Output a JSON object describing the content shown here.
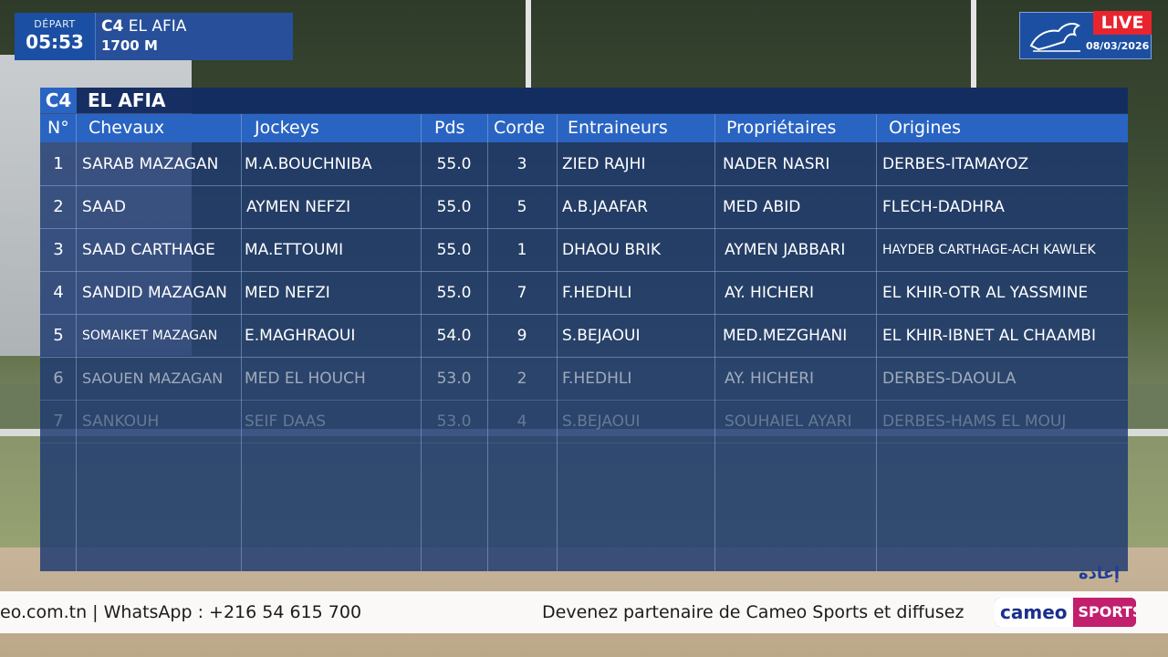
{
  "header": {
    "depart_label": "DÉPART",
    "depart_time": "05:53",
    "race_code": "C4",
    "race_name": "EL AFIA",
    "distance": "1700 M",
    "live": "LIVE",
    "date": "08/03/2026"
  },
  "table": {
    "code": "C4",
    "title": "EL AFIA",
    "columns": [
      "N°",
      "Chevaux",
      "Jockeys",
      "Pds",
      "Corde",
      "Entraineurs",
      "Propriétaires",
      "Origines"
    ],
    "rows": [
      {
        "num": "1",
        "horse": "SARAB MAZAGAN",
        "jockey": "M.A.BOUCHNIBA",
        "pds": "55.0",
        "corde": "3",
        "trainer": "ZIED RAJHI",
        "owner": "NADER NASRI",
        "origin": "DERBES-ITAMAYOZ"
      },
      {
        "num": "2",
        "horse": "SAAD",
        "jockey": "AYMEN NEFZI",
        "pds": "55.0",
        "corde": "5",
        "trainer": "A.B.JAAFAR",
        "owner": "MED ABID",
        "origin": "FLECH-DADHRA"
      },
      {
        "num": "3",
        "horse": "SAAD CARTHAGE",
        "jockey": "MA.ETTOUMI",
        "pds": "55.0",
        "corde": "1",
        "trainer": "DHAOU BRIK",
        "owner": "AYMEN JABBARI",
        "origin": "HAYDEB CARTHAGE-ACH KAWLEK"
      },
      {
        "num": "4",
        "horse": "SANDID MAZAGAN",
        "jockey": "MED NEFZI",
        "pds": "55.0",
        "corde": "7",
        "trainer": "F.HEDHLI",
        "owner": "AY. HICHERI",
        "origin": "EL KHIR-OTR AL YASSMINE"
      },
      {
        "num": "5",
        "horse": "SOMAIKET MAZAGAN",
        "jockey": "E.MAGHRAOUI",
        "pds": "54.0",
        "corde": "9",
        "trainer": "S.BEJAOUI",
        "owner": "MED.MEZGHANI",
        "origin": "EL KHIR-IBNET AL CHAAMBI"
      },
      {
        "num": "6",
        "horse": "SAOUEN MAZAGAN",
        "jockey": "MED EL HOUCH",
        "pds": "53.0",
        "corde": "2",
        "trainer": "F.HEDHLI",
        "owner": "AY. HICHERI",
        "origin": "DERBES-DAOULA"
      },
      {
        "num": "7",
        "horse": "SANKOUH",
        "jockey": "SEIF DAAS",
        "pds": "53.0",
        "corde": "4",
        "trainer": "S.BEJAOUI",
        "owner": "SOUHAIEL AYARI",
        "origin": "DERBES-HAMS EL MOUJ"
      }
    ]
  },
  "ticker": {
    "left": "eo.com.tn | WhatsApp : +216 54 615 700",
    "right": "Devenez partenaire de Cameo Sports et diffusez",
    "logo_a": "cameo",
    "logo_b": "SPORTS",
    "rewind": "إعادة"
  }
}
